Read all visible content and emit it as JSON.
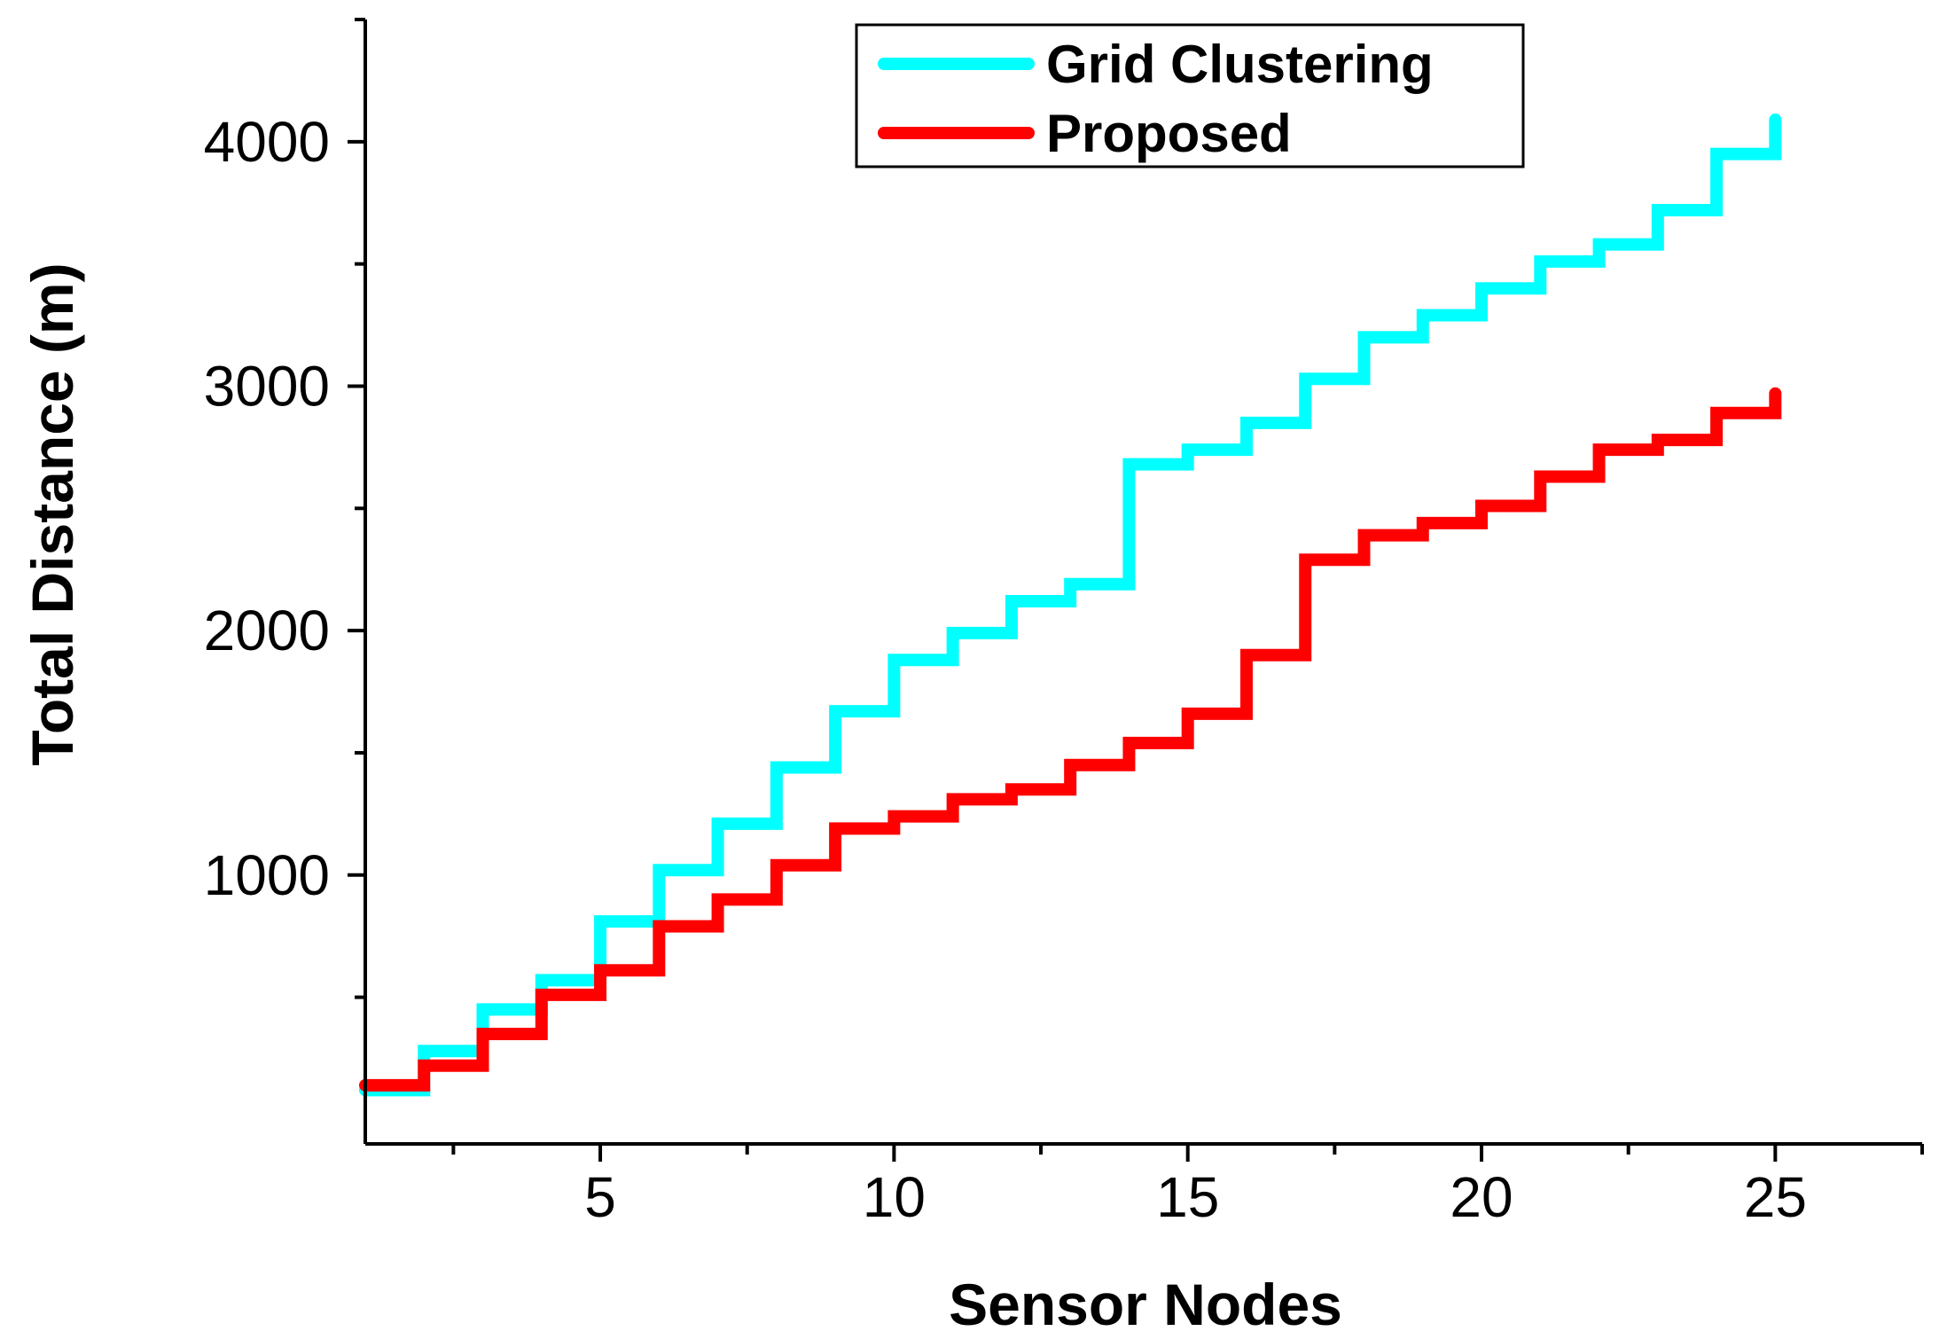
{
  "chart_data": {
    "type": "line",
    "step": "post",
    "title": "",
    "xlabel": "Sensor Nodes",
    "ylabel": "Total Distance (m)",
    "xlim": [
      1,
      27.5
    ],
    "ylim": [
      -100,
      4500
    ],
    "x_ticks": [
      5,
      10,
      15,
      20,
      25
    ],
    "x_minor_ticks": [
      2.5,
      7.5,
      12.5,
      17.5,
      22.5,
      27.5
    ],
    "y_ticks": [
      1000,
      2000,
      3000,
      4000
    ],
    "y_minor_ticks": [
      500,
      1500,
      2500,
      3500,
      4500
    ],
    "grid": false,
    "legend_position": "top-center",
    "x": [
      1,
      2,
      3,
      4,
      5,
      6,
      7,
      8,
      9,
      10,
      11,
      12,
      13,
      14,
      15,
      16,
      17,
      18,
      19,
      20,
      21,
      22,
      23,
      24,
      25
    ],
    "series": [
      {
        "name": "Grid Clustering",
        "color": "#00ffff",
        "values": [
          120,
          280,
          450,
          570,
          810,
          1020,
          1210,
          1440,
          1670,
          1880,
          1990,
          2120,
          2190,
          2680,
          2740,
          2850,
          3030,
          3200,
          3290,
          3400,
          3510,
          3580,
          3720,
          3950,
          4090
        ]
      },
      {
        "name": "Proposed",
        "color": "#ff0000",
        "values": [
          140,
          220,
          350,
          510,
          610,
          790,
          900,
          1040,
          1190,
          1240,
          1310,
          1350,
          1450,
          1540,
          1660,
          1900,
          2290,
          2390,
          2440,
          2510,
          2630,
          2740,
          2780,
          2890,
          2970
        ]
      }
    ]
  }
}
